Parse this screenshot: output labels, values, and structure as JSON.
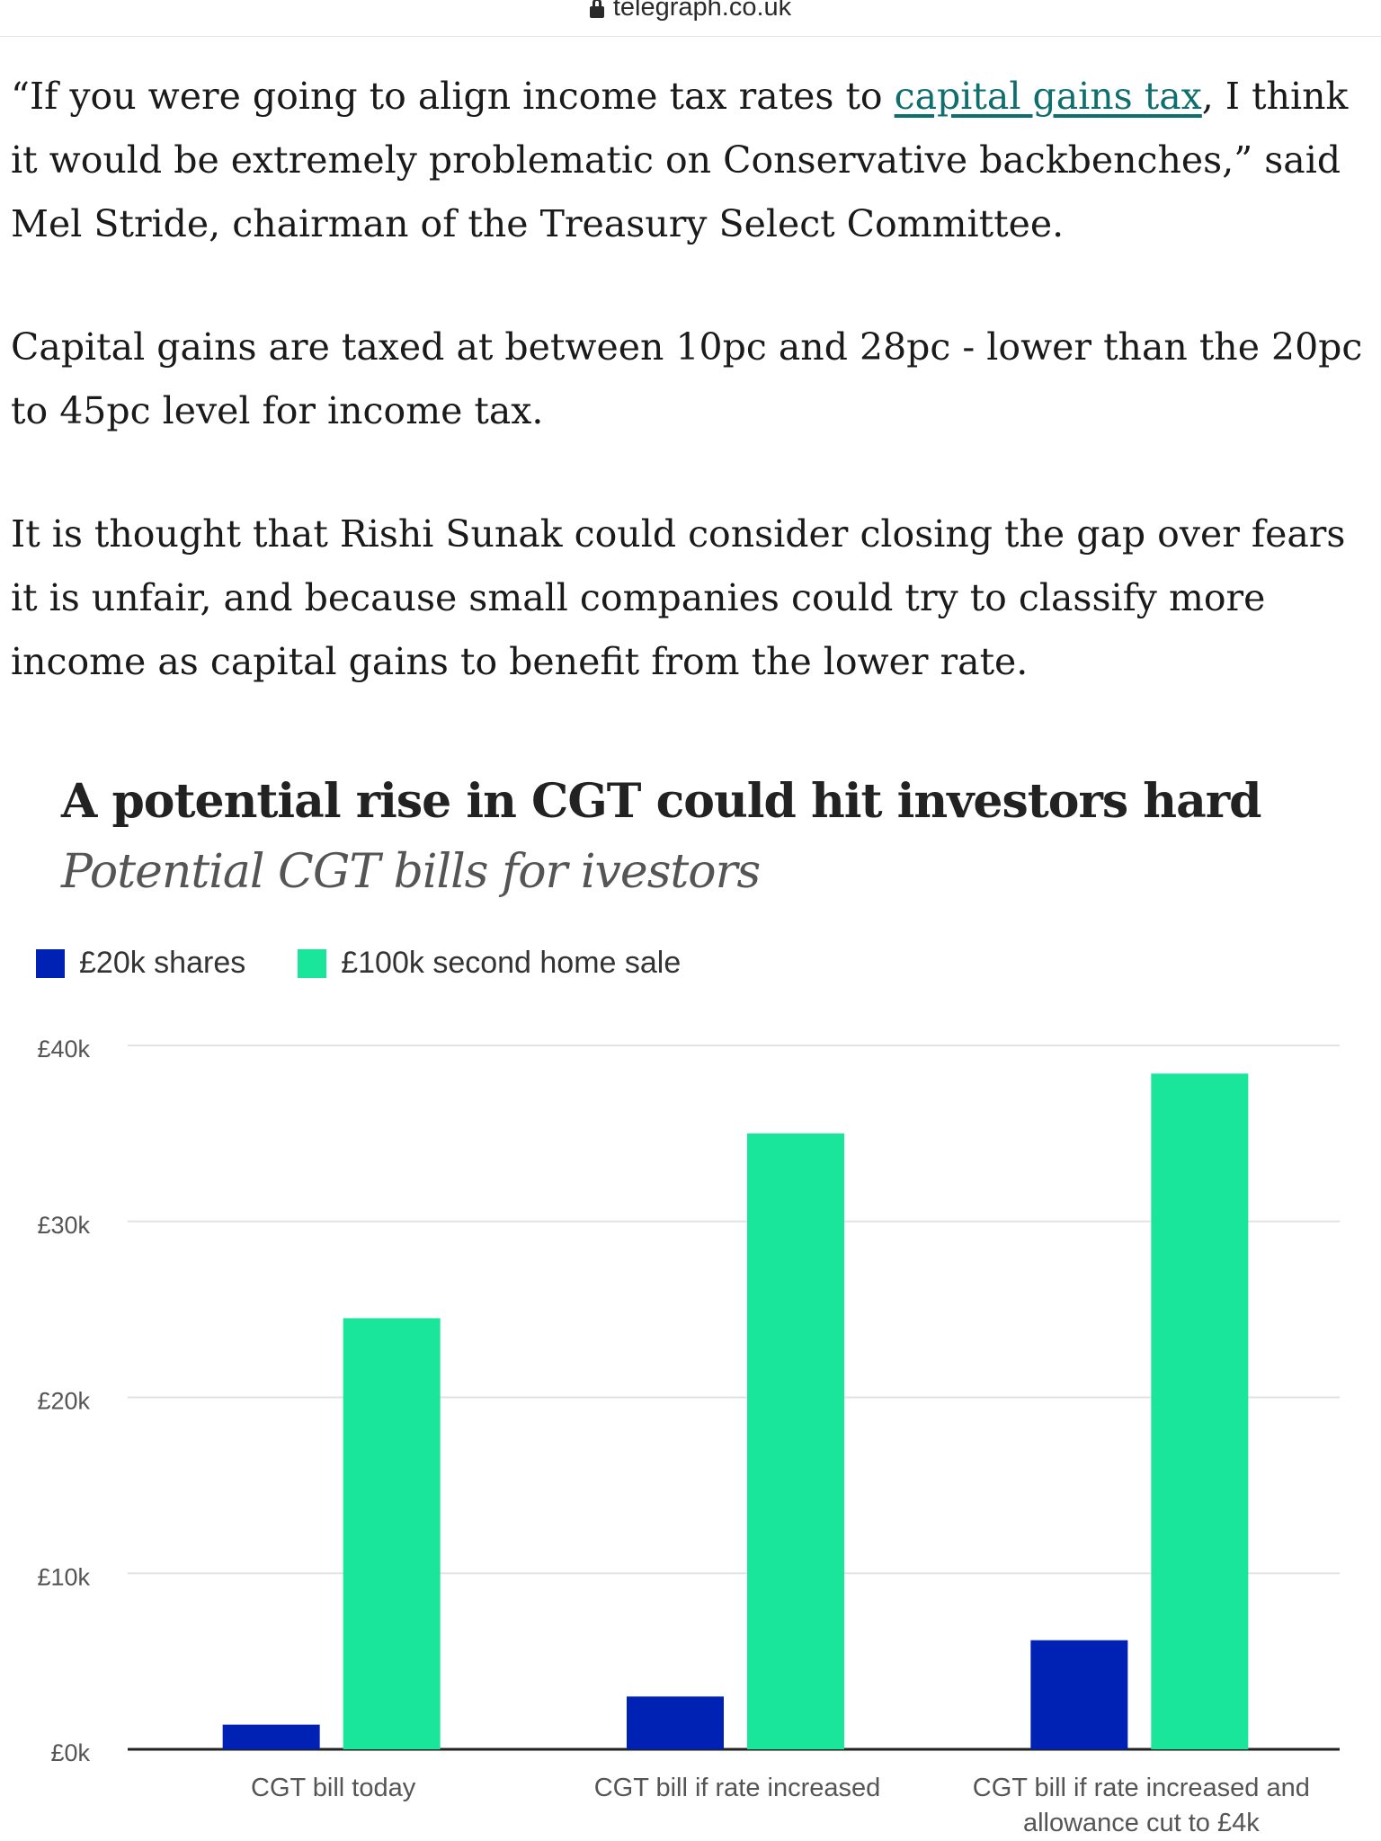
{
  "browser": {
    "url": "telegraph.co.uk"
  },
  "article": {
    "p1_before": "“If you were going to align income tax rates to ",
    "p1_link": "capital gains tax",
    "p1_after": ", I think it would be extremely problematic on Conservative backbenches,” said Mel Stride, chairman of the Treasury Select Committee.",
    "p2": "Capital gains are taxed at between 10pc and 28pc - lower than the 20pc to 45pc level for income tax.",
    "p3": "It is thought that Rishi Sunak could consider closing the gap over fears it is unfair, and because small companies could try to classify more income as capital gains to benefit from the lower rate."
  },
  "chart_data": {
    "type": "bar",
    "title": "A potential rise in CGT could hit investors hard",
    "subtitle": "Potential CGT bills for ivestors",
    "categories": [
      "CGT bill today",
      "CGT bill if rate increased",
      "CGT bill if rate increased and allowance cut to £4k"
    ],
    "series": [
      {
        "name": "£20k shares",
        "color": "#0022b4",
        "values": [
          1400,
          3000,
          6200
        ]
      },
      {
        "name": "£100k second home sale",
        "color": "#19e69b",
        "values": [
          24500,
          35000,
          38400
        ]
      }
    ],
    "ylim": [
      0,
      40000
    ],
    "yticks": [
      {
        "value": 0,
        "label": "£0k"
      },
      {
        "value": 10000,
        "label": "£10k"
      },
      {
        "value": 20000,
        "label": "£20k"
      },
      {
        "value": 30000,
        "label": "£30k"
      },
      {
        "value": 40000,
        "label": "£40k"
      }
    ],
    "grid": true,
    "legend_position": "top-left"
  }
}
